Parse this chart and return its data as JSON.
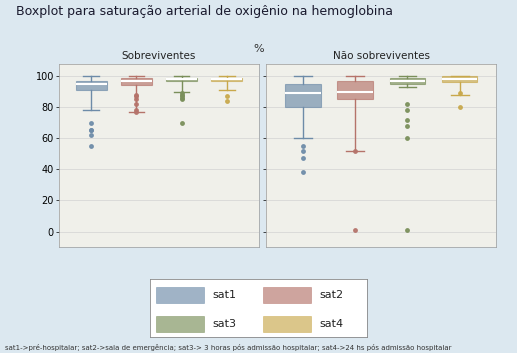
{
  "title": "Boxplot para saturação arterial de oxigênio na hemoglobina",
  "subtitle": "%",
  "footer": "sat1->pré-hospitalar; sat2->sala de emergência; sat3-> 3 horas pós admissão hospitalar; sat4->24 hs pós admissão hospitalar",
  "groups": [
    "Sobreviventes",
    "Não sobreviventes"
  ],
  "series": [
    "sat1",
    "sat2",
    "sat3",
    "sat4"
  ],
  "colors": [
    "#6d8ba8",
    "#b5736a",
    "#7a8f5a",
    "#c8a84b"
  ],
  "background": "#dce8f0",
  "plot_bg": "#f0f0ea",
  "ylim": [
    -10,
    108
  ],
  "yticks": [
    0,
    20,
    40,
    60,
    80,
    100
  ],
  "sobreviventes": {
    "sat1": {
      "whislo": 78,
      "q1": 91,
      "med": 95,
      "q3": 97,
      "whishi": 100,
      "fliers": [
        70,
        65,
        65,
        62,
        55
      ]
    },
    "sat2": {
      "whislo": 77,
      "q1": 94,
      "med": 97,
      "q3": 99,
      "whishi": 100,
      "fliers": [
        88,
        87,
        85,
        82,
        78,
        77
      ]
    },
    "sat3": {
      "whislo": 90,
      "q1": 97,
      "med": 98,
      "q3": 99,
      "whishi": 100,
      "fliers": [
        70,
        85,
        86,
        87,
        88,
        89
      ]
    },
    "sat4": {
      "whislo": 91,
      "q1": 97,
      "med": 98,
      "q3": 99,
      "whishi": 100,
      "fliers": [
        84,
        87
      ]
    }
  },
  "nao_sobreviventes": {
    "sat1": {
      "whislo": 60,
      "q1": 80,
      "med": 89,
      "q3": 95,
      "whishi": 100,
      "fliers": [
        55,
        52,
        47,
        38
      ]
    },
    "sat2": {
      "whislo": 52,
      "q1": 85,
      "med": 90,
      "q3": 97,
      "whishi": 100,
      "fliers": [
        1,
        52
      ]
    },
    "sat3": {
      "whislo": 93,
      "q1": 95,
      "med": 97,
      "q3": 99,
      "whishi": 100,
      "fliers": [
        82,
        78,
        72,
        68,
        60,
        1
      ]
    },
    "sat4": {
      "whislo": 88,
      "q1": 96,
      "med": 98,
      "q3": 100,
      "whishi": 100,
      "fliers": [
        89,
        80
      ]
    }
  }
}
